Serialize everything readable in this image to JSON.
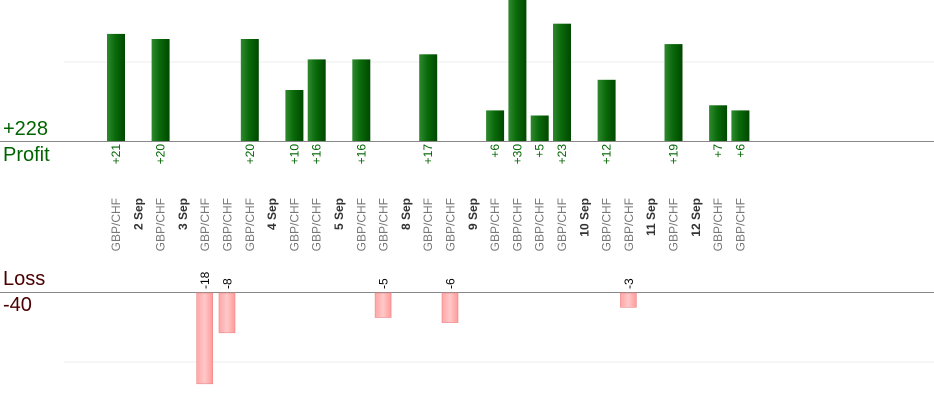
{
  "summary": {
    "profit_total": "+228",
    "profit_label": "Profit",
    "loss_label": "Loss",
    "loss_total": "-40"
  },
  "colors": {
    "profit_bar": "#006400",
    "loss_bar": "#ffb3b3",
    "profit_text": "#006400",
    "loss_text": "#000000",
    "date_text": "#333333",
    "pair_text": "#777777"
  },
  "chart_data": {
    "type": "bar",
    "columns": [
      {
        "kind": "trade",
        "label": "GBP/CHF",
        "value": 21,
        "value_label": "+21"
      },
      {
        "kind": "date",
        "label": "2 Sep"
      },
      {
        "kind": "trade",
        "label": "GBP/CHF",
        "value": 20,
        "value_label": "+20"
      },
      {
        "kind": "date",
        "label": "3 Sep"
      },
      {
        "kind": "trade",
        "label": "GBP/CHF",
        "value": -18,
        "value_label": "-18"
      },
      {
        "kind": "trade",
        "label": "GBP/CHF",
        "value": -8,
        "value_label": "-8"
      },
      {
        "kind": "trade",
        "label": "GBP/CHF",
        "value": 20,
        "value_label": "+20"
      },
      {
        "kind": "date",
        "label": "4 Sep"
      },
      {
        "kind": "trade",
        "label": "GBP/CHF",
        "value": 10,
        "value_label": "+10"
      },
      {
        "kind": "trade",
        "label": "GBP/CHF",
        "value": 16,
        "value_label": "+16"
      },
      {
        "kind": "date",
        "label": "5 Sep"
      },
      {
        "kind": "trade",
        "label": "GBP/CHF",
        "value": 16,
        "value_label": "+16"
      },
      {
        "kind": "trade",
        "label": "GBP/CHF",
        "value": -5,
        "value_label": "-5"
      },
      {
        "kind": "date",
        "label": "8 Sep"
      },
      {
        "kind": "trade",
        "label": "GBP/CHF",
        "value": 17,
        "value_label": "+17"
      },
      {
        "kind": "trade",
        "label": "GBP/CHF",
        "value": -6,
        "value_label": "-6"
      },
      {
        "kind": "date",
        "label": "9 Sep"
      },
      {
        "kind": "trade",
        "label": "GBP/CHF",
        "value": 6,
        "value_label": "+6"
      },
      {
        "kind": "trade",
        "label": "GBP/CHF",
        "value": 30,
        "value_label": "+30"
      },
      {
        "kind": "trade",
        "label": "GBP/CHF",
        "value": 5,
        "value_label": "+5"
      },
      {
        "kind": "trade",
        "label": "GBP/CHF",
        "value": 23,
        "value_label": "+23"
      },
      {
        "kind": "date",
        "label": "10 Sep"
      },
      {
        "kind": "trade",
        "label": "GBP/CHF",
        "value": 12,
        "value_label": "+12"
      },
      {
        "kind": "trade",
        "label": "GBP/CHF",
        "value": -3,
        "value_label": "-3"
      },
      {
        "kind": "date",
        "label": "11 Sep"
      },
      {
        "kind": "trade",
        "label": "GBP/CHF",
        "value": 19,
        "value_label": "+19"
      },
      {
        "kind": "date",
        "label": "12 Sep"
      },
      {
        "kind": "trade",
        "label": "GBP/CHF",
        "value": 7,
        "value_label": "+7"
      },
      {
        "kind": "trade",
        "label": "GBP/CHF",
        "value": 6,
        "value_label": "+6"
      }
    ],
    "grid": true
  }
}
